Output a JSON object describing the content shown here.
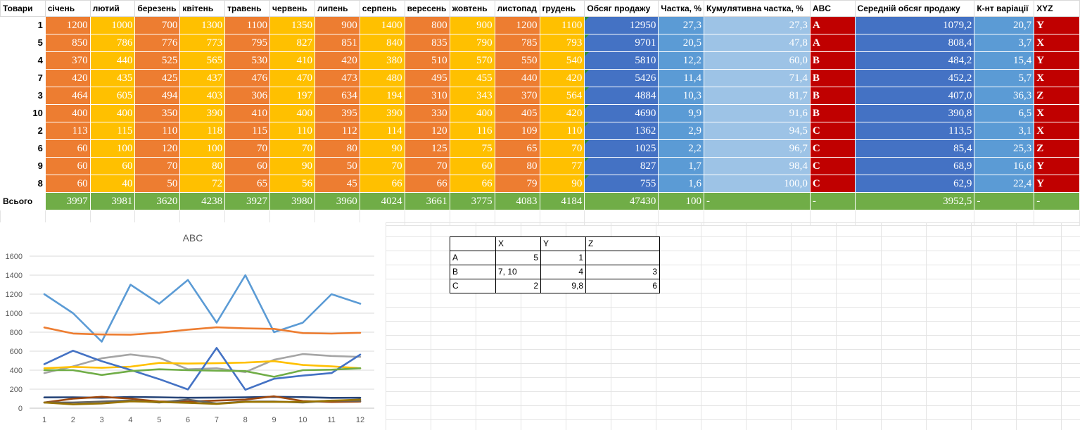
{
  "sheet": {
    "headers": {
      "item": "Товари",
      "months": [
        "січень",
        "лютий",
        "березень",
        "квітень",
        "травень",
        "червень",
        "липень",
        "серпень",
        "вересень",
        "жовтень",
        "листопад",
        "грудень"
      ],
      "volume": "Обсяг продажу",
      "share": "Частка, %",
      "cumulative": "Кумулятивна частка, %",
      "abc": "ABC",
      "average": "Середній обсяг продажу",
      "cv": "К-нт варіації",
      "xyz": "XYZ"
    },
    "rows": [
      {
        "item": "1",
        "months": [
          "1200",
          "1000",
          "700",
          "1300",
          "1100",
          "1350",
          "900",
          "1400",
          "800",
          "900",
          "1200",
          "1100"
        ],
        "volume": "12950",
        "share": "27,3",
        "cumulative": "27,3",
        "abc": "A",
        "average": "1079,2",
        "cv": "20,7",
        "xyz": "Y"
      },
      {
        "item": "5",
        "months": [
          "850",
          "786",
          "776",
          "773",
          "795",
          "827",
          "851",
          "840",
          "835",
          "790",
          "785",
          "793"
        ],
        "volume": "9701",
        "share": "20,5",
        "cumulative": "47,8",
        "abc": "A",
        "average": "808,4",
        "cv": "3,7",
        "xyz": "X"
      },
      {
        "item": "4",
        "months": [
          "370",
          "440",
          "525",
          "565",
          "530",
          "410",
          "420",
          "380",
          "510",
          "570",
          "550",
          "540"
        ],
        "volume": "5810",
        "share": "12,2",
        "cumulative": "60,0",
        "abc": "B",
        "average": "484,2",
        "cv": "15,4",
        "xyz": "Y"
      },
      {
        "item": "7",
        "months": [
          "420",
          "435",
          "425",
          "437",
          "476",
          "470",
          "473",
          "480",
          "495",
          "455",
          "440",
          "420"
        ],
        "volume": "5426",
        "share": "11,4",
        "cumulative": "71,4",
        "abc": "B",
        "average": "452,2",
        "cv": "5,7",
        "xyz": "X"
      },
      {
        "item": "3",
        "months": [
          "464",
          "605",
          "494",
          "403",
          "306",
          "197",
          "634",
          "194",
          "310",
          "343",
          "370",
          "564"
        ],
        "volume": "4884",
        "share": "10,3",
        "cumulative": "81,7",
        "abc": "B",
        "average": "407,0",
        "cv": "36,3",
        "xyz": "Z"
      },
      {
        "item": "10",
        "months": [
          "400",
          "400",
          "350",
          "390",
          "410",
          "400",
          "395",
          "390",
          "330",
          "400",
          "405",
          "420"
        ],
        "volume": "4690",
        "share": "9,9",
        "cumulative": "91,6",
        "abc": "B",
        "average": "390,8",
        "cv": "6,5",
        "xyz": "X"
      },
      {
        "item": "2",
        "months": [
          "113",
          "115",
          "110",
          "118",
          "115",
          "110",
          "112",
          "114",
          "120",
          "116",
          "109",
          "110"
        ],
        "volume": "1362",
        "share": "2,9",
        "cumulative": "94,5",
        "abc": "C",
        "average": "113,5",
        "cv": "3,1",
        "xyz": "X"
      },
      {
        "item": "6",
        "months": [
          "60",
          "100",
          "120",
          "100",
          "70",
          "70",
          "80",
          "90",
          "125",
          "75",
          "65",
          "70"
        ],
        "volume": "1025",
        "share": "2,2",
        "cumulative": "96,7",
        "abc": "C",
        "average": "85,4",
        "cv": "25,3",
        "xyz": "Z"
      },
      {
        "item": "9",
        "months": [
          "60",
          "60",
          "70",
          "80",
          "60",
          "90",
          "50",
          "70",
          "70",
          "60",
          "80",
          "77"
        ],
        "volume": "827",
        "share": "1,7",
        "cumulative": "98,4",
        "abc": "C",
        "average": "68,9",
        "cv": "16,6",
        "xyz": "Y"
      },
      {
        "item": "8",
        "months": [
          "60",
          "40",
          "50",
          "72",
          "65",
          "56",
          "45",
          "66",
          "66",
          "66",
          "79",
          "90"
        ],
        "volume": "755",
        "share": "1,6",
        "cumulative": "100,0",
        "abc": "C",
        "average": "62,9",
        "cv": "22,4",
        "xyz": "Y"
      }
    ],
    "total": {
      "label": "Всього",
      "months": [
        "3997",
        "3981",
        "3620",
        "4238",
        "3927",
        "3980",
        "3960",
        "4024",
        "3661",
        "3775",
        "4083",
        "4184"
      ],
      "volume": "47430",
      "share": "100",
      "cumulative": "-",
      "abc": "-",
      "average": "3952,5",
      "cv": "-",
      "xyz": "-"
    }
  },
  "matrix": {
    "headers": [
      "",
      "X",
      "Y",
      "Z"
    ],
    "rows": [
      [
        "A",
        "5",
        "1",
        ""
      ],
      [
        "B",
        "7, 10",
        "4",
        "3"
      ],
      [
        "C",
        "2",
        "9,8",
        "6"
      ]
    ]
  },
  "chart_data": {
    "type": "line",
    "title": "ABC",
    "x": [
      1,
      2,
      3,
      4,
      5,
      6,
      7,
      8,
      9,
      10,
      11,
      12
    ],
    "ylim": [
      0,
      1600
    ],
    "yticks": [
      0,
      200,
      400,
      600,
      800,
      1000,
      1200,
      1400,
      1600
    ],
    "grid": true,
    "legend": "none",
    "series": [
      {
        "color": "#5b9bd5",
        "values": [
          1200,
          1000,
          700,
          1300,
          1100,
          1350,
          900,
          1400,
          800,
          900,
          1200,
          1100
        ]
      },
      {
        "color": "#ed7d31",
        "values": [
          850,
          786,
          776,
          773,
          795,
          827,
          851,
          840,
          835,
          790,
          785,
          793
        ]
      },
      {
        "color": "#a5a5a5",
        "values": [
          370,
          440,
          525,
          565,
          530,
          410,
          420,
          380,
          510,
          570,
          550,
          540
        ]
      },
      {
        "color": "#ffc000",
        "values": [
          420,
          435,
          425,
          437,
          476,
          470,
          473,
          480,
          495,
          455,
          440,
          420
        ]
      },
      {
        "color": "#4472c4",
        "values": [
          464,
          605,
          494,
          403,
          306,
          197,
          634,
          194,
          310,
          343,
          370,
          564
        ]
      },
      {
        "color": "#70ad47",
        "values": [
          400,
          400,
          350,
          390,
          410,
          400,
          395,
          390,
          330,
          400,
          405,
          420
        ]
      },
      {
        "color": "#264478",
        "values": [
          113,
          115,
          110,
          118,
          115,
          110,
          112,
          114,
          120,
          116,
          109,
          110
        ]
      },
      {
        "color": "#9e480e",
        "values": [
          60,
          100,
          120,
          100,
          70,
          70,
          80,
          90,
          125,
          75,
          65,
          70
        ]
      },
      {
        "color": "#636363",
        "values": [
          60,
          60,
          70,
          80,
          60,
          90,
          50,
          70,
          70,
          60,
          80,
          77
        ]
      },
      {
        "color": "#997300",
        "values": [
          60,
          40,
          50,
          72,
          65,
          56,
          45,
          66,
          66,
          66,
          79,
          90
        ]
      }
    ]
  }
}
